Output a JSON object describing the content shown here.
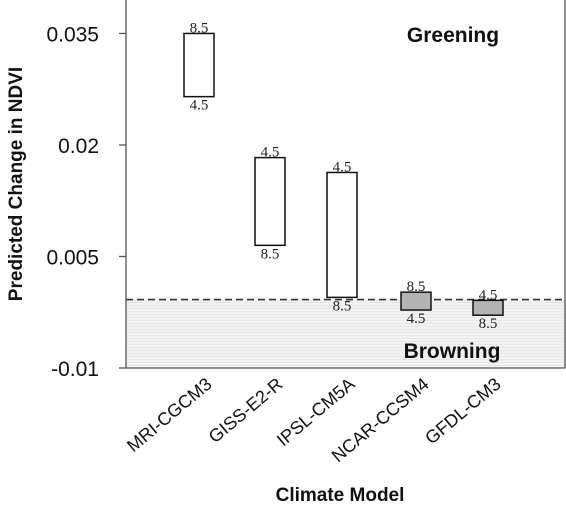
{
  "chart_data": {
    "type": "bar",
    "title": "",
    "xlabel": "Climate Model",
    "ylabel": "Predicted Change in NDVI",
    "ylim": [
      -0.01,
      0.0395
    ],
    "yticks": [
      {
        "value": 0.035,
        "label": "0.035"
      },
      {
        "value": 0.02,
        "label": "0.02"
      },
      {
        "value": 0.005,
        "label": "0.005"
      },
      {
        "value": -0.01,
        "label": "-0.01"
      }
    ],
    "baseline": -0.0008,
    "grid": false,
    "region_labels": {
      "above": "Greening",
      "below": "Browning"
    },
    "categories": [
      "MRI-CGCM3",
      "GISS-E2-R",
      "IPSL-CM5A",
      "NCAR-CCSM4",
      "GFDL-CM3"
    ],
    "series": [
      {
        "name": "4.5",
        "values": [
          0.0265,
          0.0183,
          0.0163,
          -0.0022,
          -0.0009
        ]
      },
      {
        "name": "8.5",
        "values": [
          0.035,
          0.0065,
          -0.0005,
          0.0002,
          -0.0029
        ]
      }
    ],
    "styles": {
      "greening_fill": "#ffffff",
      "browning_fill": "#b3b3b3",
      "browning_region": "#f2f2f2",
      "dashed_line": "#333333"
    }
  }
}
